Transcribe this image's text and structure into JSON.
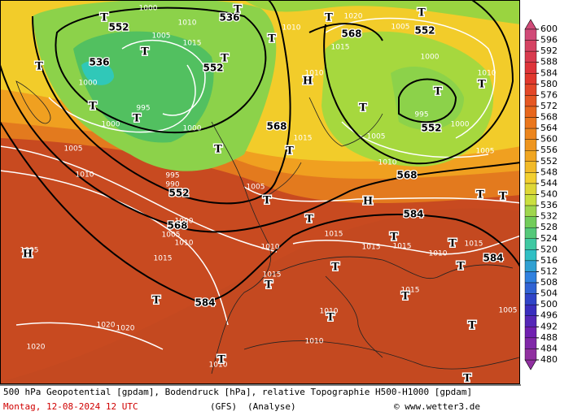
{
  "colorbar": {
    "labels": [
      600,
      596,
      592,
      588,
      584,
      580,
      576,
      572,
      568,
      564,
      560,
      556,
      552,
      548,
      544,
      540,
      536,
      532,
      528,
      524,
      520,
      516,
      512,
      508,
      504,
      500,
      496,
      492,
      488,
      484,
      480
    ]
  },
  "map": {
    "labels": [
      "536",
      "552",
      "536",
      "552",
      "568",
      "552",
      "568",
      "552",
      "552",
      "568",
      "568",
      "584",
      "584",
      "584",
      "1000",
      "1010",
      "1015",
      "1005",
      "1000",
      "995",
      "1000",
      "1000",
      "995",
      "990",
      "1005",
      "1010",
      "1020",
      "1015",
      "1010",
      "1005",
      "1000",
      "995",
      "1000",
      "1005",
      "1010",
      "1005",
      "1010",
      "1015",
      "1005",
      "1000",
      "1005",
      "1010",
      "1015",
      "1005",
      "1015",
      "1015",
      "1010",
      "1015",
      "1015",
      "1010",
      "1015",
      "1020",
      "1020",
      "1020",
      "1010",
      "1010",
      "1010",
      "1005",
      "1015",
      "1010",
      "T",
      "T",
      "T",
      "T",
      "T",
      "T",
      "T",
      "T",
      "T",
      "T",
      "T",
      "T",
      "T",
      "T",
      "T",
      "T",
      "T",
      "T",
      "T",
      "T",
      "T",
      "T",
      "T",
      "T",
      "T",
      "T",
      "T",
      "T",
      "T",
      "T",
      "H",
      "H",
      "H"
    ]
  },
  "footer": {
    "line1": "500 hPa Geopotential [gpdam], Bodendruck [hPa], relative Topographie H500-H1000 [gpdam]",
    "date": "Montag, 12-08-2024  12 UTC",
    "model": "(GFS)",
    "run": "(Analyse)",
    "credit": "© www.wetter3.de"
  }
}
